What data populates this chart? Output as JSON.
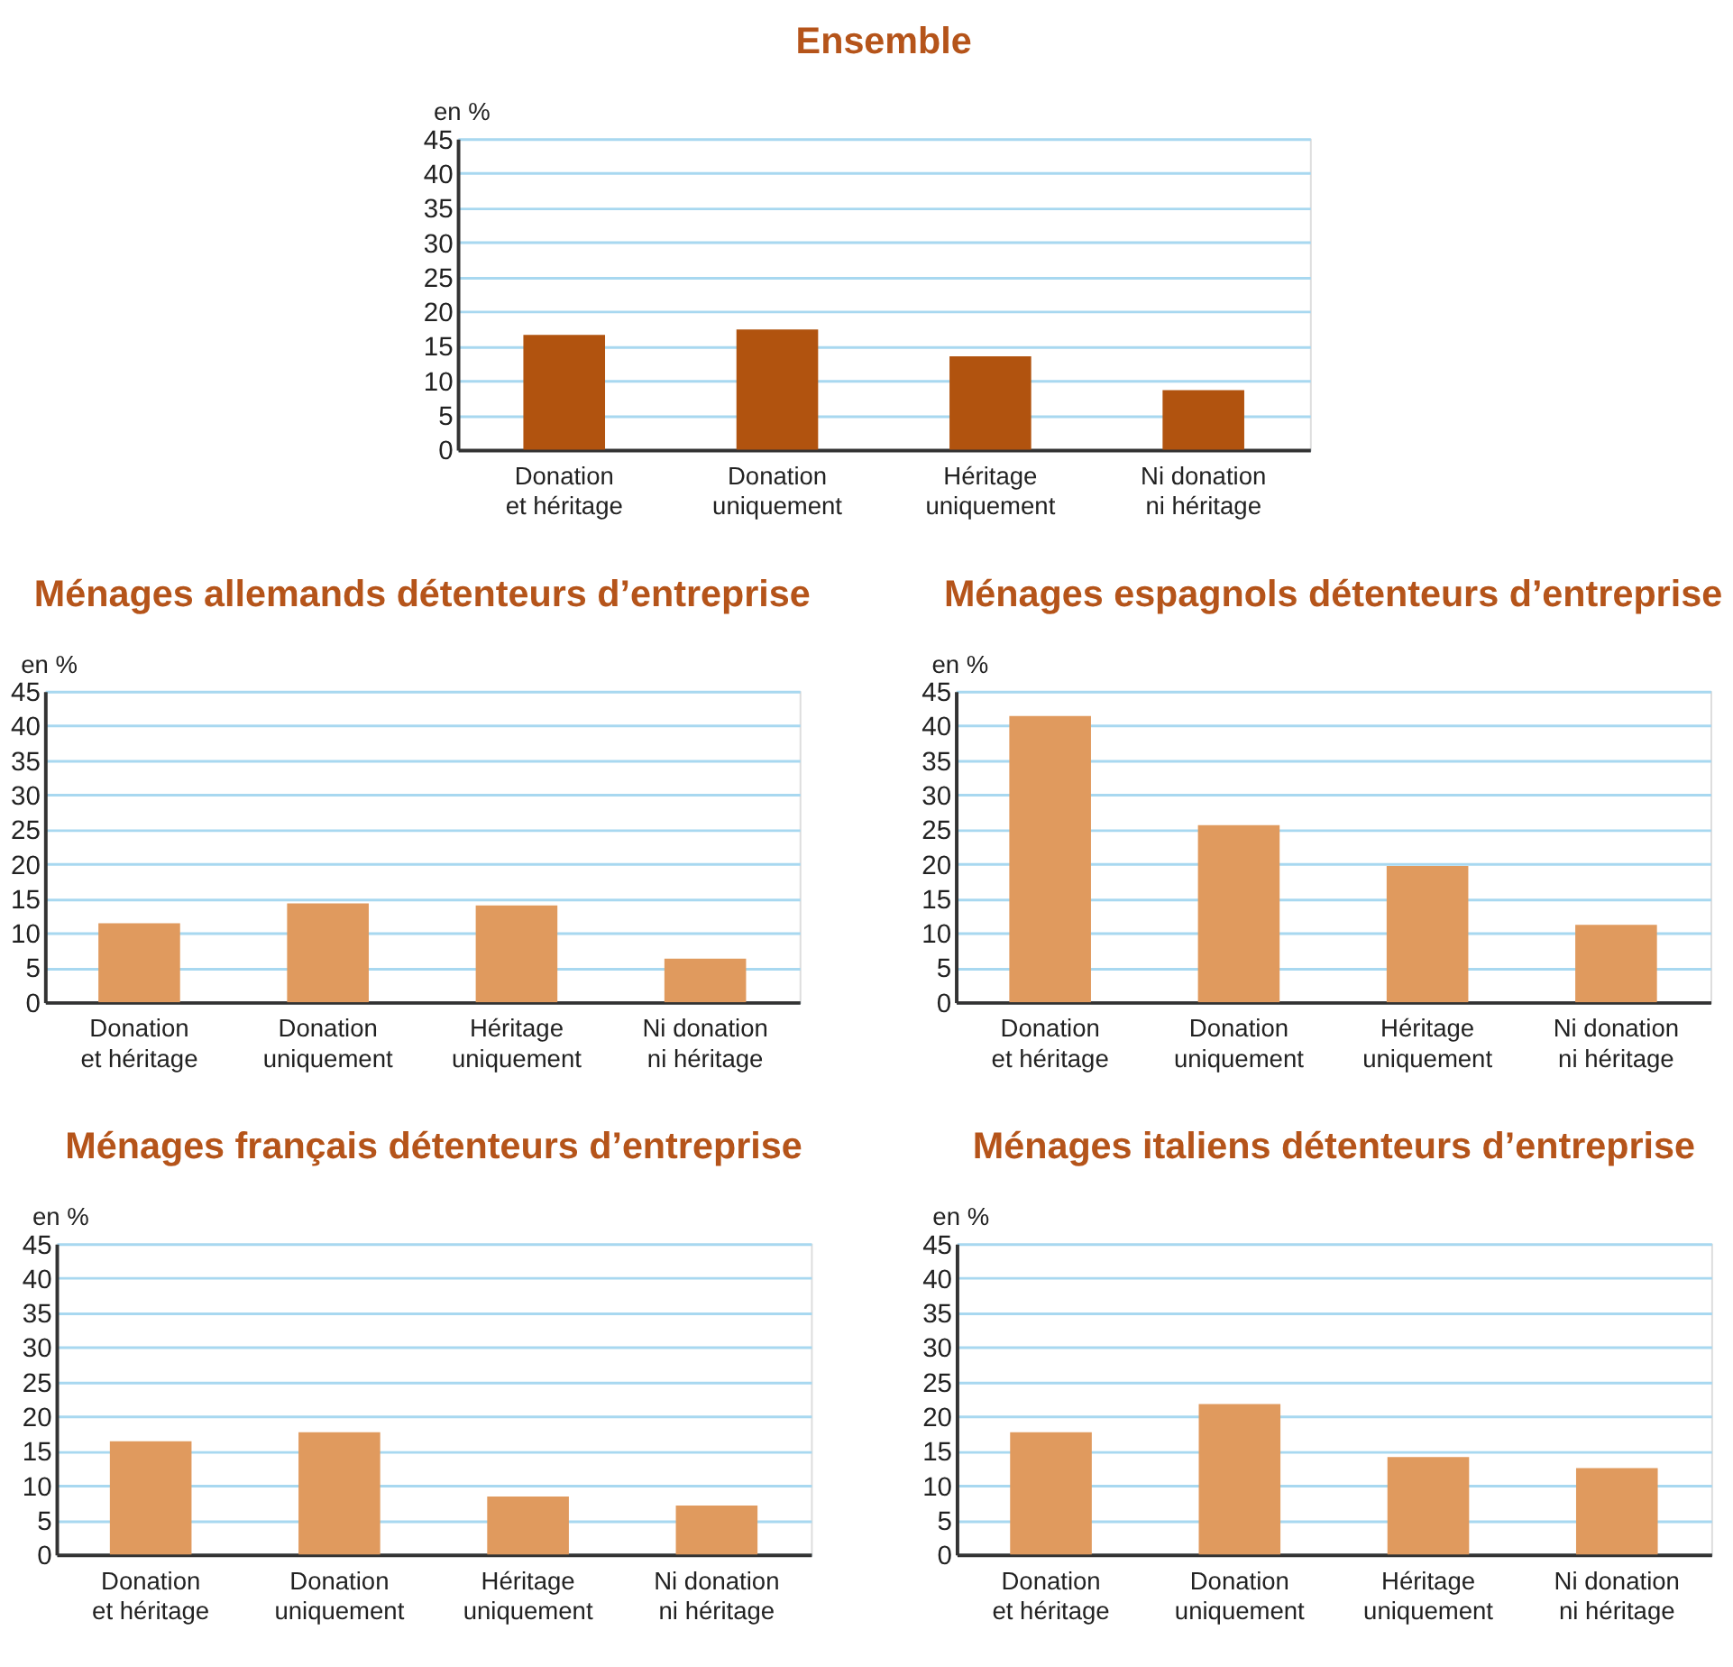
{
  "chart_data": [
    {
      "type": "bar",
      "title": "Ensemble",
      "ylabel": "en %",
      "categories": [
        "Donation\net héritage",
        "Donation\nuniquement",
        "Héritage\nuniquement",
        "Ni donation\nni héritage"
      ],
      "values": [
        16.6,
        17.4,
        13.5,
        8.6
      ],
      "color": "#b1530f",
      "ylim": [
        0,
        45
      ],
      "yticks": [
        0,
        5,
        10,
        15,
        20,
        25,
        30,
        35,
        40,
        45
      ],
      "grid": "y"
    },
    {
      "type": "bar",
      "title": "Ménages allemands détenteurs d’entreprise",
      "ylabel": "en %",
      "categories": [
        "Donation\net héritage",
        "Donation\nuniquement",
        "Héritage\nuniquement",
        "Ni donation\nni héritage"
      ],
      "values": [
        11.4,
        14.3,
        14.0,
        6.3
      ],
      "color": "#e09a5e",
      "ylim": [
        0,
        45
      ],
      "yticks": [
        0,
        5,
        10,
        15,
        20,
        25,
        30,
        35,
        40,
        45
      ],
      "grid": "y"
    },
    {
      "type": "bar",
      "title": "Ménages espagnols détenteurs d’entreprise",
      "ylabel": "en %",
      "categories": [
        "Donation\net héritage",
        "Donation\nuniquement",
        "Héritage\nuniquement",
        "Ni donation\nni héritage"
      ],
      "values": [
        41.4,
        25.6,
        19.7,
        11.2
      ],
      "color": "#e09a5e",
      "ylim": [
        0,
        45
      ],
      "yticks": [
        0,
        5,
        10,
        15,
        20,
        25,
        30,
        35,
        40,
        45
      ],
      "grid": "y"
    },
    {
      "type": "bar",
      "title": "Ménages français détenteurs d’entreprise",
      "ylabel": "en %",
      "categories": [
        "Donation\net héritage",
        "Donation\nuniquement",
        "Héritage\nuniquement",
        "Ni donation\nni héritage"
      ],
      "values": [
        16.4,
        17.7,
        8.4,
        7.1
      ],
      "color": "#e09a5e",
      "ylim": [
        0,
        45
      ],
      "yticks": [
        0,
        5,
        10,
        15,
        20,
        25,
        30,
        35,
        40,
        45
      ],
      "grid": "y"
    },
    {
      "type": "bar",
      "title": "Ménages italiens détenteurs d’entreprise",
      "ylabel": "en %",
      "categories": [
        "Donation\net héritage",
        "Donation\nuniquement",
        "Héritage\nuniquement",
        "Ni donation\nni héritage"
      ],
      "values": [
        17.7,
        21.8,
        14.1,
        12.5
      ],
      "color": "#e09a5e",
      "ylim": [
        0,
        45
      ],
      "yticks": [
        0,
        5,
        10,
        15,
        20,
        25,
        30,
        35,
        40,
        45
      ],
      "grid": "y"
    }
  ]
}
